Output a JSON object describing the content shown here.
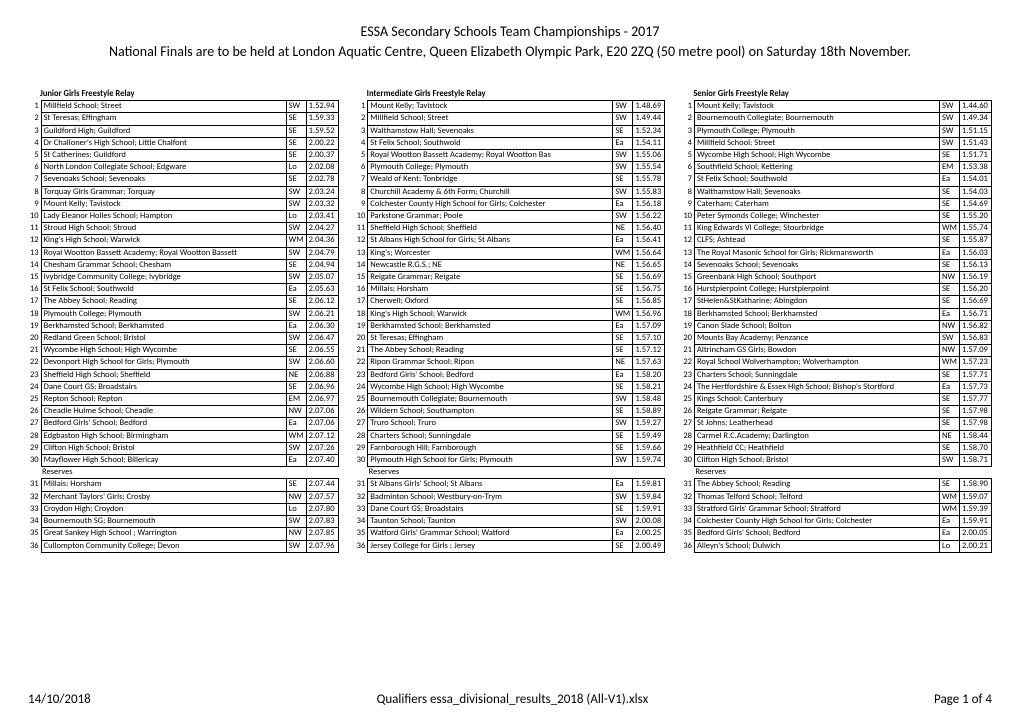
{
  "header": {
    "title": "ESSA Secondary Schools Team Championships - 2017",
    "subtitle": "National Finals are to be held at London Aquatic Centre, Queen Elizabeth Olympic Park, E20 2ZQ (50 metre pool) on Saturday 18th November."
  },
  "labels": {
    "reserves": "Reserves"
  },
  "columns": [
    {
      "title": "Junior Girls Freestyle Relay",
      "rows": [
        {
          "r": 1,
          "s": "Millfield School; Street",
          "g": "SW",
          "t": "1.52.94"
        },
        {
          "r": 2,
          "s": "St Teresas; Effingham",
          "g": "SE",
          "t": "1.59.33"
        },
        {
          "r": 3,
          "s": "Guildford High; Guildford",
          "g": "SE",
          "t": "1.59.52"
        },
        {
          "r": 4,
          "s": "Dr Challoner's High School; Little Chalfont",
          "g": "SE",
          "t": "2.00.22"
        },
        {
          "r": 5,
          "s": "St Catherines; Guildford",
          "g": "SE",
          "t": "2.00.37"
        },
        {
          "r": 6,
          "s": "North London Collegiate School; Edgware",
          "g": "Lo",
          "t": "2.02.08"
        },
        {
          "r": 7,
          "s": "Sevenoaks School; Sevenoaks",
          "g": "SE",
          "t": "2.02.78"
        },
        {
          "r": 8,
          "s": "Torquay Girls Grammar; Torquay",
          "g": "SW",
          "t": "2.03.24"
        },
        {
          "r": 9,
          "s": "Mount Kelly; Tavistock",
          "g": "SW",
          "t": "2.03.32"
        },
        {
          "r": 10,
          "s": "Lady Eleanor Holles School; Hampton",
          "g": "Lo",
          "t": "2.03.41"
        },
        {
          "r": 11,
          "s": "Stroud High School; Stroud",
          "g": "SW",
          "t": "2.04.27"
        },
        {
          "r": 12,
          "s": "King's High School; Warwick",
          "g": "WM",
          "t": "2.04.36"
        },
        {
          "r": 13,
          "s": "Royal Wootton Bassett Academy; Royal Wootton Bassett",
          "g": "SW",
          "t": "2.04.79"
        },
        {
          "r": 14,
          "s": "Chesham Grammar School; Chesham",
          "g": "SE",
          "t": "2.04.94"
        },
        {
          "r": 15,
          "s": "Ivybridge Community College; Ivybridge",
          "g": "SW",
          "t": "2.05.07"
        },
        {
          "r": 16,
          "s": "St Felix School; Southwold",
          "g": "Ea",
          "t": "2.05.63"
        },
        {
          "r": 17,
          "s": "The Abbey School; Reading",
          "g": "SE",
          "t": "2.06.12"
        },
        {
          "r": 18,
          "s": "Plymouth College; Plymouth",
          "g": "SW",
          "t": "2.06.21"
        },
        {
          "r": 19,
          "s": "Berkhamsted School; Berkhamsted",
          "g": "Ea",
          "t": "2.06.30"
        },
        {
          "r": 20,
          "s": "Redland Green School; Bristol",
          "g": "SW",
          "t": "2.06.47"
        },
        {
          "r": 21,
          "s": "Wycombe High School; High Wycombe",
          "g": "SE",
          "t": "2.06.55"
        },
        {
          "r": 22,
          "s": "Devonport High School for Girls; Plymouth",
          "g": "SW",
          "t": "2.06.60"
        },
        {
          "r": 23,
          "s": "Sheffield High School; Sheffield",
          "g": "NE",
          "t": "2.06.88"
        },
        {
          "r": 24,
          "s": "Dane Court GS; Broadstairs",
          "g": "SE",
          "t": "2.06.96"
        },
        {
          "r": 25,
          "s": "Repton School; Repton",
          "g": "EM",
          "t": "2.06.97"
        },
        {
          "r": 26,
          "s": "Cheadle Hulme School; Cheadle",
          "g": "NW",
          "t": "2.07.06"
        },
        {
          "r": 27,
          "s": "Bedford Girls' School; Bedford",
          "g": "Ea",
          "t": "2.07.06"
        },
        {
          "r": 28,
          "s": "Edgbaston High School; Birmingham",
          "g": "WM",
          "t": "2.07.12"
        },
        {
          "r": 29,
          "s": "Clifton High School; Bristol",
          "g": "SW",
          "t": "2.07.26"
        },
        {
          "r": 30,
          "s": "Mayflower High School; Billericay",
          "g": "Ea",
          "t": "2.07.40"
        }
      ],
      "reserves": [
        {
          "r": 31,
          "s": "Millais; Horsham",
          "g": "SE",
          "t": "2.07.44"
        },
        {
          "r": 32,
          "s": "Merchant Taylors' Girls; Crosby",
          "g": "NW",
          "t": "2.07.57"
        },
        {
          "r": 33,
          "s": "Croydon High; Croydon",
          "g": "Lo",
          "t": "2.07.80"
        },
        {
          "r": 34,
          "s": "Bournemouth SG; Bournemouth",
          "g": "SW",
          "t": "2.07.83"
        },
        {
          "r": 35,
          "s": "Great Sankey High School ; Warrington",
          "g": "NW",
          "t": "2.07.85"
        },
        {
          "r": 36,
          "s": "Cullompton Community College; Devon",
          "g": "SW",
          "t": "2.07.96"
        }
      ]
    },
    {
      "title": "Intermediate Girls Freestyle Relay",
      "rows": [
        {
          "r": 1,
          "s": "Mount Kelly; Tavistock",
          "g": "SW",
          "t": "1.48.69"
        },
        {
          "r": 2,
          "s": "Millfield School; Street",
          "g": "SW",
          "t": "1.49.44"
        },
        {
          "r": 3,
          "s": "Walthamstow Hall; Sevenoaks",
          "g": "SE",
          "t": "1.52.34"
        },
        {
          "r": 4,
          "s": "St Felix School; Southwold",
          "g": "Ea",
          "t": "1.54.11"
        },
        {
          "r": 5,
          "s": "Royal Wootton Bassett Academy; Royal Wootton Bas",
          "g": "SW",
          "t": "1.55.06"
        },
        {
          "r": 6,
          "s": "Plymouth College; Plymouth",
          "g": "SW",
          "t": "1.55.54"
        },
        {
          "r": 7,
          "s": "Weald of Kent; Tonbridge",
          "g": "SE",
          "t": "1.55.78"
        },
        {
          "r": 8,
          "s": "Churchill Academy & 6th Form; Churchill",
          "g": "SW",
          "t": "1.55.83"
        },
        {
          "r": 9,
          "s": "Colchester County High School for Girls; Colchester",
          "g": "Ea",
          "t": "1.56.18"
        },
        {
          "r": 10,
          "s": "Parkstone Grammar; Poole",
          "g": "SW",
          "t": "1.56.22"
        },
        {
          "r": 11,
          "s": "Sheffield High School; Sheffield",
          "g": "NE",
          "t": "1.56.40"
        },
        {
          "r": 12,
          "s": "St Albans High School for Girls; St Albans",
          "g": "Ea",
          "t": "1.56.41"
        },
        {
          "r": 13,
          "s": "King's; Worcester",
          "g": "WM",
          "t": "1.56.64"
        },
        {
          "r": 14,
          "s": "Newcastle R.G.S.; NE",
          "g": "NE",
          "t": "1.56.65"
        },
        {
          "r": 15,
          "s": "Reigate Grammar; Reigate",
          "g": "SE",
          "t": "1.56.69"
        },
        {
          "r": 16,
          "s": "Millais; Horsham",
          "g": "SE",
          "t": "1.56.75"
        },
        {
          "r": 17,
          "s": "Cherwell; Oxford",
          "g": "SE",
          "t": "1.56.85"
        },
        {
          "r": 18,
          "s": "King's High School; Warwick",
          "g": "WM",
          "t": "1.56.96"
        },
        {
          "r": 19,
          "s": "Berkhamsted School; Berkhamsted",
          "g": "Ea",
          "t": "1.57.09"
        },
        {
          "r": 20,
          "s": "St Teresas; Effingham",
          "g": "SE",
          "t": "1.57.10"
        },
        {
          "r": 21,
          "s": "The Abbey School; Reading",
          "g": "SE",
          "t": "1.57.12"
        },
        {
          "r": 22,
          "s": "Ripon Grammar School; Ripon",
          "g": "NE",
          "t": "1.57.63"
        },
        {
          "r": 23,
          "s": "Bedford Girls' School; Bedford",
          "g": "Ea",
          "t": "1.58.20"
        },
        {
          "r": 24,
          "s": "Wycombe High School; High Wycombe",
          "g": "SE",
          "t": "1.58.21"
        },
        {
          "r": 25,
          "s": "Bournemouth Collegiate; Bournemouth",
          "g": "SW",
          "t": "1.58.48"
        },
        {
          "r": 26,
          "s": "Wildern School; Southampton",
          "g": "SE",
          "t": "1.58.89"
        },
        {
          "r": 27,
          "s": "Truro School; Truro",
          "g": "SW",
          "t": "1.59.27"
        },
        {
          "r": 28,
          "s": "Charters School; Sunningdale",
          "g": "SE",
          "t": "1.59.49"
        },
        {
          "r": 29,
          "s": "Farnborough Hill; Farnborough",
          "g": "SE",
          "t": "1.59.66"
        },
        {
          "r": 30,
          "s": "Plymouth High School for Girls; Plymouth",
          "g": "SW",
          "t": "1.59.74"
        }
      ],
      "reserves": [
        {
          "r": 31,
          "s": "St Albans Girls' School; St Albans",
          "g": "Ea",
          "t": "1.59.81"
        },
        {
          "r": 32,
          "s": "Badminton School; Westbury-on-Trym",
          "g": "SW",
          "t": "1.59.84"
        },
        {
          "r": 33,
          "s": "Dane Court GS; Broadstairs",
          "g": "SE",
          "t": "1.59.91"
        },
        {
          "r": 34,
          "s": "Taunton School; Taunton",
          "g": "SW",
          "t": "2.00.08"
        },
        {
          "r": 35,
          "s": "Watford Girls' Grammar School; Watford",
          "g": "Ea",
          "t": "2.00.25"
        },
        {
          "r": 36,
          "s": "Jersey College for Girls ; Jersey",
          "g": "SE",
          "t": "2.00.49"
        }
      ]
    },
    {
      "title": "Senior Girls Freestyle Relay",
      "rows": [
        {
          "r": 1,
          "s": "Mount Kelly; Tavistock",
          "g": "SW",
          "t": "1.44.60"
        },
        {
          "r": 2,
          "s": "Bournemouth Collegiate; Bournemouth",
          "g": "SW",
          "t": "1.49.34"
        },
        {
          "r": 3,
          "s": "Plymouth College; Plymouth",
          "g": "SW",
          "t": "1.51.15"
        },
        {
          "r": 4,
          "s": "Millfield School; Street",
          "g": "SW",
          "t": "1.51.43"
        },
        {
          "r": 5,
          "s": "Wycombe High School; High Wycombe",
          "g": "SE",
          "t": "1.51.71"
        },
        {
          "r": 6,
          "s": "Southfield School; Kettering",
          "g": "EM",
          "t": "1.53.38"
        },
        {
          "r": 7,
          "s": "St Felix School; Southwold",
          "g": "Ea",
          "t": "1.54.01"
        },
        {
          "r": 8,
          "s": "Walthamstow Hall; Sevenoaks",
          "g": "SE",
          "t": "1.54.03"
        },
        {
          "r": 9,
          "s": "Caterham; Caterham",
          "g": "SE",
          "t": "1.54.69"
        },
        {
          "r": 10,
          "s": "Peter Symonds College; Winchester",
          "g": "SE",
          "t": "1.55.20"
        },
        {
          "r": 11,
          "s": "King Edwards VI College; Stourbridge",
          "g": "WM",
          "t": "1.55.74"
        },
        {
          "r": 12,
          "s": "CLFS; Ashtead",
          "g": "SE",
          "t": "1.55.87"
        },
        {
          "r": 13,
          "s": "The Royal Masonic School for Girls; Rickmansworth",
          "g": "Ea",
          "t": "1.56.03"
        },
        {
          "r": 14,
          "s": "Sevenoaks School; Sevenoaks",
          "g": "SE",
          "t": "1.56.13"
        },
        {
          "r": 15,
          "s": "Greenbank High School; Southport",
          "g": "NW",
          "t": "1.56.19"
        },
        {
          "r": 16,
          "s": "Hurstpierpoint College; Hurstpierpoint",
          "g": "SE",
          "t": "1.56.20"
        },
        {
          "r": 17,
          "s": "StHelen&StKatharine; Abingdon",
          "g": "SE",
          "t": "1.56.69"
        },
        {
          "r": 18,
          "s": "Berkhamsted School; Berkhamsted",
          "g": "Ea",
          "t": "1.56.71"
        },
        {
          "r": 19,
          "s": "Canon Slade School; Bolton",
          "g": "NW",
          "t": "1.56.82"
        },
        {
          "r": 20,
          "s": "Mounts Bay Academy; Penzance",
          "g": "SW",
          "t": "1.56.83"
        },
        {
          "r": 21,
          "s": "Altrincham GS Girls; Bowdon",
          "g": "NW",
          "t": "1.57.09"
        },
        {
          "r": 22,
          "s": "Royal School Wolverhampton; Wolverhampton",
          "g": "WM",
          "t": "1.57.23"
        },
        {
          "r": 23,
          "s": "Charters School; Sunningdale",
          "g": "SE",
          "t": "1.57.71"
        },
        {
          "r": 24,
          "s": "The Hertfordshire & Essex High School; Bishop's Stortford",
          "g": "Ea",
          "t": "1.57.73"
        },
        {
          "r": 25,
          "s": "Kings School; Canterbury",
          "g": "SE",
          "t": "1.57.77"
        },
        {
          "r": 26,
          "s": "Reigate Grammar; Reigate",
          "g": "SE",
          "t": "1.57.98"
        },
        {
          "r": 27,
          "s": "St Johns; Leatherhead",
          "g": "SE",
          "t": "1.57.98"
        },
        {
          "r": 28,
          "s": "Carmel R.C.Academy; Darlington",
          "g": "NE",
          "t": "1.58.44"
        },
        {
          "r": 29,
          "s": "Heathfield CC; Heathfield",
          "g": "SE",
          "t": "1.58.70"
        },
        {
          "r": 30,
          "s": "Clifton High School; Bristol",
          "g": "SW",
          "t": "1.58.71"
        }
      ],
      "reserves": [
        {
          "r": 31,
          "s": "The Abbey School; Reading",
          "g": "SE",
          "t": "1.58.90"
        },
        {
          "r": 32,
          "s": "Thomas Telford School; Telford",
          "g": "WM",
          "t": "1.59.07"
        },
        {
          "r": 33,
          "s": "Stratford Girls' Grammar School; Stratford",
          "g": "WM",
          "t": "1.59.39"
        },
        {
          "r": 34,
          "s": "Colchester County High School for Girls; Colchester",
          "g": "Ea",
          "t": "1.59.91"
        },
        {
          "r": 35,
          "s": "Bedford Girls' School; Bedford",
          "g": "Ea",
          "t": "2.00.05"
        },
        {
          "r": 36,
          "s": "Alleyn's School; Dulwich",
          "g": "Lo",
          "t": "2.00.21"
        }
      ]
    }
  ],
  "footer": {
    "date": "14/10/2018",
    "file": "Qualifiers essa_divisional_results_2018 (All-V1).xlsx",
    "page": "Page 1 of 4"
  }
}
